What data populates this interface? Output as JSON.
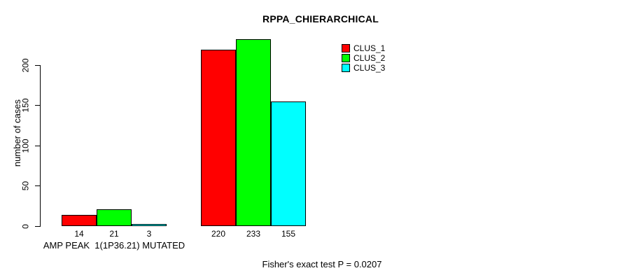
{
  "chart_data": {
    "type": "bar",
    "title": "RPPA_CHIERARCHICAL",
    "ylabel": "number of cases",
    "yticks": [
      0,
      50,
      100,
      150,
      200
    ],
    "ylim": [
      0,
      240
    ],
    "grid": false,
    "categories": [
      "AMP PEAK  1(1P36.21) MUTATED",
      ""
    ],
    "series": [
      {
        "name": "CLUS_1",
        "color": "#ff0000",
        "values": [
          14,
          220
        ]
      },
      {
        "name": "CLUS_2",
        "color": "#00ff00",
        "values": [
          21,
          233
        ]
      },
      {
        "name": "CLUS_3",
        "color": "#00ffff",
        "values": [
          3,
          155
        ]
      }
    ],
    "legend_position": "top-right",
    "annotation": "Fisher's exact test P = 0.0207"
  }
}
